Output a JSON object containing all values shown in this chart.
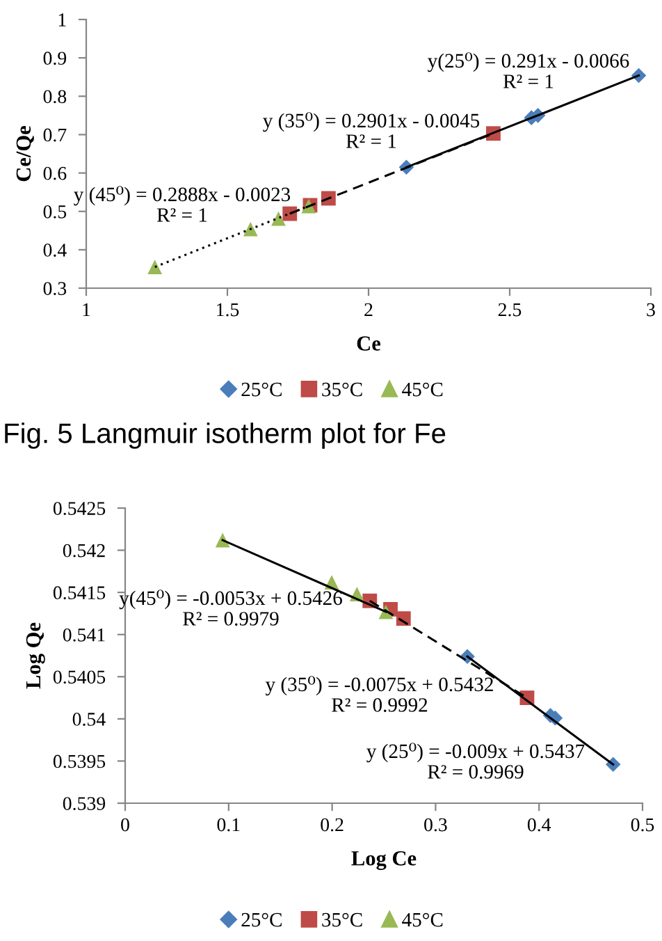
{
  "chart_data": [
    {
      "type": "scatter",
      "xlabel": "Ce",
      "ylabel": "Ce/Qe",
      "xlim": [
        1,
        3
      ],
      "xticks": [
        1,
        1.5,
        2,
        2.5,
        3
      ],
      "ylim": [
        0.3,
        1
      ],
      "yticks": [
        0.3,
        0.4,
        0.5,
        0.6,
        0.7,
        0.8,
        0.9,
        1
      ],
      "grid": false,
      "legend": "bottom",
      "series": [
        {
          "name": "25°C",
          "marker": "diamond",
          "color": "#4a7ebb",
          "x": [
            2.134,
            2.577,
            2.6,
            2.957
          ],
          "values": [
            0.615,
            0.744,
            0.75,
            0.854
          ]
        },
        {
          "name": "35°C",
          "marker": "square",
          "color": "#be4b48",
          "x": [
            1.721,
            1.793,
            1.858,
            2.442
          ],
          "values": [
            0.494,
            0.516,
            0.534,
            0.703
          ]
        },
        {
          "name": "45°C",
          "marker": "triangle",
          "color": "#98b954",
          "x": [
            1.243,
            1.582,
            1.681,
            1.788
          ],
          "values": [
            0.355,
            0.454,
            0.481,
            0.514
          ]
        },
        {
          "type": "line",
          "marker": "none",
          "line_style": "solid",
          "color": "#000000",
          "x": [
            2.134,
            2.957
          ],
          "values": [
            0.615,
            0.854
          ]
        },
        {
          "type": "line",
          "marker": "none",
          "line_style": "dashed",
          "color": "#000000",
          "x": [
            1.721,
            2.442
          ],
          "values": [
            0.494,
            0.703
          ]
        },
        {
          "type": "line",
          "marker": "none",
          "line_style": "dotted",
          "color": "#000000",
          "x": [
            1.243,
            1.788
          ],
          "values": [
            0.355,
            0.514
          ]
        }
      ],
      "annotations": [
        "y(25⁰) = 0.291x - 0.0066\nR² = 1",
        "y (35⁰) = 0.2901x - 0.0045\nR² = 1",
        "y (45⁰) = 0.2888x - 0.0023\nR² = 1",
        "Fig. 5 Langmuir isotherm plot for Fe"
      ]
    },
    {
      "type": "scatter",
      "xlabel": "Log Ce",
      "ylabel": "Log Qe",
      "xlim": [
        0,
        0.5
      ],
      "xticks": [
        0,
        0.1,
        0.2,
        0.3,
        0.4,
        0.5
      ],
      "ylim": [
        0.539,
        0.5425
      ],
      "yticks": [
        0.539,
        0.5395,
        0.54,
        0.5405,
        0.541,
        0.5415,
        0.542,
        0.5425
      ],
      "grid": false,
      "legend": "bottom",
      "series": [
        {
          "name": "25°C",
          "marker": "diamond",
          "color": "#4a7ebb",
          "x": [
            0.3307,
            0.411,
            0.4156,
            0.4716
          ],
          "values": [
            0.54074,
            0.54004,
            0.54001,
            0.53946
          ]
        },
        {
          "name": "35°C",
          "marker": "square",
          "color": "#be4b48",
          "x": [
            0.2364,
            0.2564,
            0.269,
            0.3884
          ],
          "values": [
            0.5414,
            0.5413,
            0.54119,
            0.54025
          ]
        },
        {
          "name": "45°C",
          "marker": "triangle",
          "color": "#98b954",
          "x": [
            0.0942,
            0.1996,
            0.224,
            0.252
          ],
          "values": [
            0.54212,
            0.54162,
            0.54148,
            0.54127
          ]
        },
        {
          "type": "line",
          "marker": "none",
          "line_style": "solid",
          "color": "#000000",
          "x": [
            0.3307,
            0.4716
          ],
          "values": [
            0.54074,
            0.53946
          ]
        },
        {
          "type": "line",
          "marker": "none",
          "line_style": "dashed",
          "color": "#000000",
          "x": [
            0.2364,
            0.3884
          ],
          "values": [
            0.5414,
            0.54025
          ]
        },
        {
          "type": "line",
          "marker": "none",
          "line_style": "solid",
          "color": "#000000",
          "x": [
            0.0942,
            0.252
          ],
          "values": [
            0.54212,
            0.54127
          ]
        }
      ],
      "annotations": [
        "y(45⁰) = -0.0053x + 0.5426\nR² = 0.9979",
        "y (35⁰) = -0.0075x + 0.5432\nR² = 0.9992",
        "y (25⁰) = -0.009x + 0.5437\nR² = 0.9969"
      ]
    }
  ]
}
